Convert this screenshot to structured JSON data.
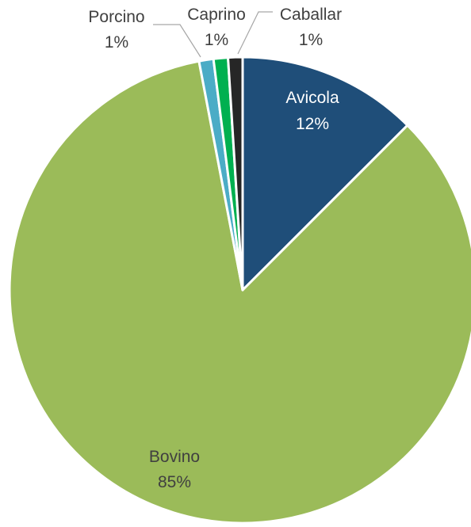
{
  "chart_data": {
    "type": "pie",
    "title": "",
    "series": [
      {
        "name": "",
        "slices": [
          {
            "label": "Avicola",
            "value": 12,
            "display": "12%",
            "color": "#1F4E79"
          },
          {
            "label": "Bovino",
            "value": 85,
            "display": "85%",
            "color": "#9BBB59"
          },
          {
            "label": "Porcino",
            "value": 1,
            "display": "1%",
            "color": "#4BACC6"
          },
          {
            "label": "Caprino",
            "value": 1,
            "display": "1%",
            "color": "#00B050"
          },
          {
            "label": "Caballar",
            "value": 1,
            "display": "1%",
            "color": "#262626"
          }
        ]
      }
    ],
    "slice_order": "clockwise-from-top",
    "legend": "none",
    "data_labels": "category-and-percent",
    "leader_line_color": "#A6A6A6"
  }
}
